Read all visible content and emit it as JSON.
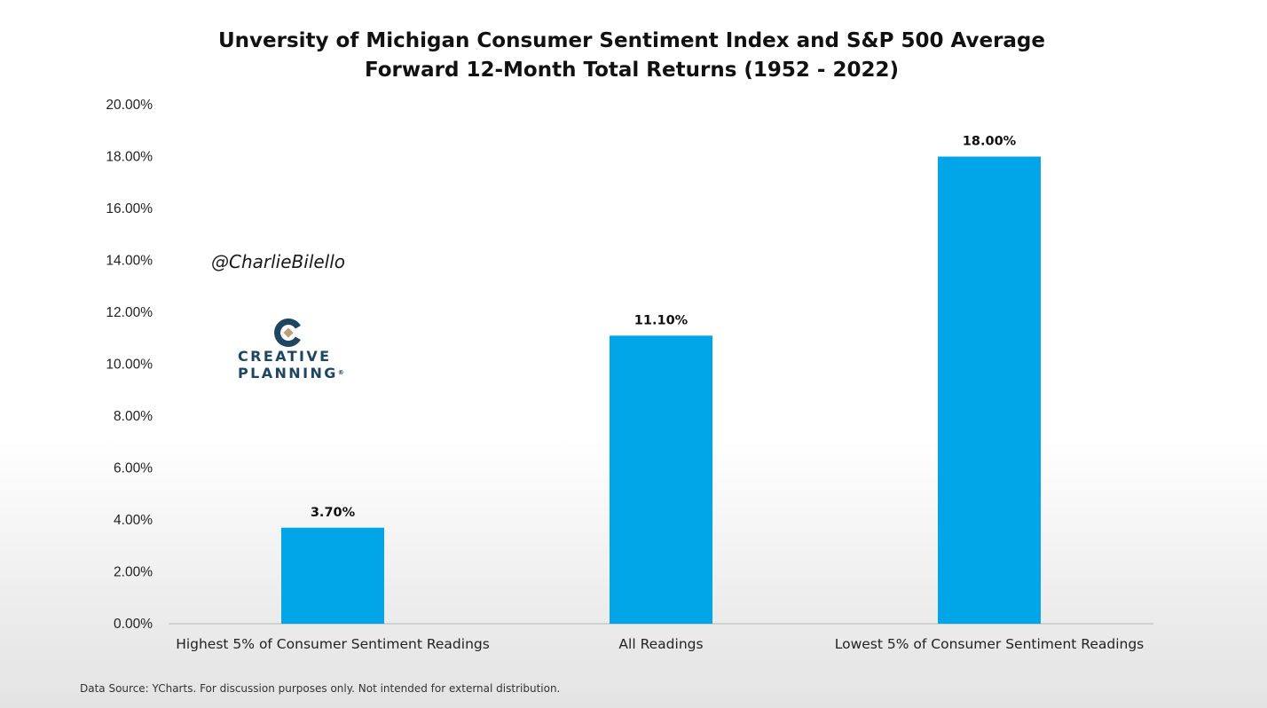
{
  "chart_data": {
    "type": "bar",
    "title_line1": "Unversity of Michigan Consumer Sentiment Index and S&P 500 Average",
    "title_line2": "Forward 12-Month Total Returns (1952 - 2022)",
    "categories": [
      "Highest 5% of Consumer Sentiment Readings",
      "All Readings",
      "Lowest 5% of Consumer Sentiment Readings"
    ],
    "values": [
      3.7,
      11.1,
      18.0
    ],
    "data_labels": [
      "3.70%",
      "11.10%",
      "18.00%"
    ],
    "ylim": [
      0,
      20
    ],
    "yticks": [
      {
        "value": 0,
        "label": "0.00%"
      },
      {
        "value": 2,
        "label": "2.00%"
      },
      {
        "value": 4,
        "label": "4.00%"
      },
      {
        "value": 6,
        "label": "6.00%"
      },
      {
        "value": 8,
        "label": "8.00%"
      },
      {
        "value": 10,
        "label": "10.00%"
      },
      {
        "value": 12,
        "label": "12.00%"
      },
      {
        "value": 14,
        "label": "14.00%"
      },
      {
        "value": 16,
        "label": "16.00%"
      },
      {
        "value": 18,
        "label": "18.00%"
      },
      {
        "value": 20,
        "label": "20.00%"
      }
    ],
    "grid": false,
    "bar_color": "#00a6e8"
  },
  "watermark": {
    "handle": "@CharlieBilello",
    "logo_line1": "CREATIVE",
    "logo_line2": "PLANNING",
    "logo_colors": [
      "#1e4660",
      "#b9a27a"
    ]
  },
  "footnote": "Data Source: YCharts. For discussion purposes only. Not intended for external distribution."
}
